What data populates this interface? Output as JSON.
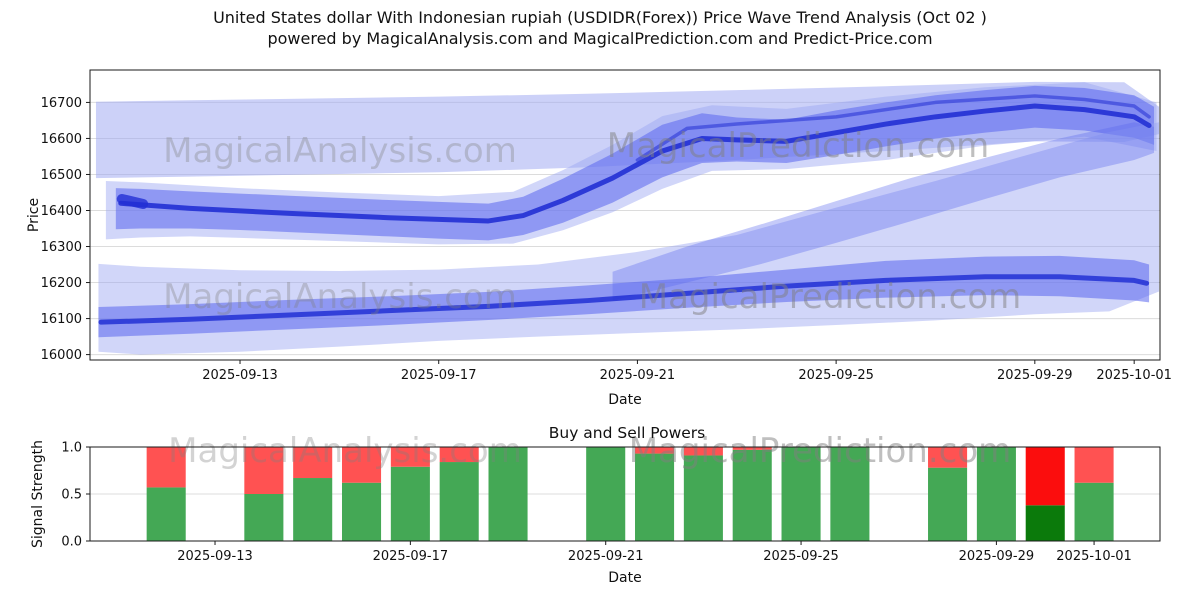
{
  "title": {
    "line1": "United States dollar With Indonesian rupiah (USDIDR(Forex)) Price Wave Trend Analysis (Oct 02 )",
    "line2": "powered by MagicalAnalysis.com and MagicalPrediction.com and Predict-Price.com"
  },
  "watermarks": {
    "left": "MagicalAnalysis.com",
    "right": "MagicalPrediction.com"
  },
  "colors": {
    "band_light": "#9aa4f2",
    "band_mid": "#5a66ee",
    "line_dark": "#2230d4",
    "buy_green": "#44a855",
    "sell_red": "#ff5252",
    "buy_green_dark": "#0b7a0b",
    "sell_red_bright": "#fb0d0d",
    "grid": "#dcdcdc",
    "axis": "#1a1a1a",
    "watermark_gray": "#808080"
  },
  "chart_data": [
    {
      "type": "area",
      "name": "price-wave-trend",
      "ylabel": "Price",
      "xlabel": "Date",
      "xlim": [
        -0.02,
        21.52
      ],
      "ylim": [
        15985,
        16790
      ],
      "yticks": [
        16000,
        16100,
        16200,
        16300,
        16400,
        16500,
        16600,
        16700
      ],
      "xtick_days": [
        3,
        7,
        11,
        15,
        19,
        21
      ],
      "xtick_labels": [
        "2025-09-13",
        "2025-09-17",
        "2025-09-21",
        "2025-09-25",
        "2025-09-29",
        "2025-10-01"
      ],
      "grid": "horizontal",
      "legend": "none",
      "bands": [
        {
          "name": "upper-outer",
          "color": "band_light",
          "opacity": 0.5,
          "x": [
            0.1,
            2,
            4,
            7,
            10,
            13,
            16,
            19,
            20.8,
            21.5
          ],
          "hi": [
            16702,
            16706,
            16710,
            16716,
            16724,
            16734,
            16745,
            16757,
            16756,
            16688
          ],
          "lo": [
            16490,
            16494,
            16499,
            16506,
            16520,
            16540,
            16565,
            16592,
            16590,
            16612
          ]
        },
        {
          "name": "mid-outer",
          "color": "band_light",
          "opacity": 0.45,
          "x": [
            0.3,
            1,
            2,
            3,
            5,
            7,
            8.5,
            9.5,
            10.5,
            11.5,
            12.5,
            14,
            16,
            18,
            20,
            21.45
          ],
          "hi": [
            16482,
            16478,
            16470,
            16462,
            16450,
            16440,
            16452,
            16512,
            16582,
            16662,
            16692,
            16682,
            16716,
            16742,
            16756,
            16700
          ],
          "lo": [
            16320,
            16325,
            16328,
            16324,
            16315,
            16306,
            16308,
            16345,
            16395,
            16460,
            16510,
            16515,
            16540,
            16580,
            16605,
            16565
          ]
        },
        {
          "name": "mid-inner",
          "color": "band_mid",
          "opacity": 0.55,
          "x": [
            0.5,
            1,
            2,
            3,
            4,
            5,
            6,
            7,
            8,
            8.7,
            9.5,
            10.5,
            11.5,
            12.3,
            13,
            14,
            15,
            16,
            17,
            18,
            19,
            20,
            21,
            21.4
          ],
          "hi": [
            16462,
            16460,
            16453,
            16447,
            16441,
            16435,
            16429,
            16424,
            16419,
            16438,
            16488,
            16558,
            16638,
            16670,
            16658,
            16652,
            16678,
            16700,
            16720,
            16734,
            16746,
            16740,
            16720,
            16688
          ],
          "lo": [
            16348,
            16350,
            16350,
            16346,
            16340,
            16334,
            16328,
            16322,
            16317,
            16332,
            16366,
            16422,
            16492,
            16532,
            16536,
            16532,
            16554,
            16578,
            16600,
            16616,
            16630,
            16622,
            16602,
            16582
          ]
        },
        {
          "name": "lower-outer",
          "color": "band_light",
          "opacity": 0.45,
          "x": [
            0.15,
            1,
            3,
            5,
            7,
            9,
            11,
            13,
            15,
            17,
            19,
            20.5,
            21.5
          ],
          "hi": [
            16252,
            16244,
            16234,
            16232,
            16236,
            16250,
            16285,
            16332,
            16408,
            16482,
            16560,
            16618,
            16645
          ],
          "lo": [
            16008,
            16000,
            16008,
            16022,
            16038,
            16050,
            16060,
            16070,
            16082,
            16095,
            16112,
            16120,
            16175
          ]
        },
        {
          "name": "lower-rise",
          "color": "band_mid",
          "opacity": 0.35,
          "x": [
            10.5,
            12,
            13.5,
            15,
            16.5,
            18,
            19.5,
            21,
            21.4
          ],
          "hi": [
            16230,
            16300,
            16362,
            16426,
            16490,
            16546,
            16600,
            16645,
            16632
          ],
          "lo": [
            16150,
            16200,
            16252,
            16310,
            16370,
            16432,
            16492,
            16540,
            16560
          ]
        },
        {
          "name": "lower-inner",
          "color": "band_mid",
          "opacity": 0.55,
          "x": [
            0.15,
            2,
            4,
            6,
            8,
            10,
            12,
            14,
            16,
            18,
            19.5,
            21,
            21.3
          ],
          "hi": [
            16132,
            16140,
            16152,
            16162,
            16174,
            16192,
            16212,
            16236,
            16260,
            16272,
            16274,
            16262,
            16250
          ],
          "lo": [
            16048,
            16058,
            16070,
            16082,
            16096,
            16112,
            16130,
            16146,
            16158,
            16165,
            16162,
            16150,
            16145
          ]
        }
      ],
      "lines": [
        {
          "name": "mid-core",
          "color": "line_dark",
          "width": 5,
          "opacity": 0.9,
          "x": [
            0.6,
            2,
            4,
            6,
            8,
            8.7,
            9.5,
            10.5,
            11.5,
            12.3,
            13,
            14,
            15,
            16,
            17,
            18,
            19,
            20,
            21,
            21.3
          ],
          "y": [
            16420,
            16406,
            16392,
            16380,
            16371,
            16386,
            16428,
            16490,
            16565,
            16600,
            16596,
            16592,
            16616,
            16640,
            16660,
            16676,
            16690,
            16680,
            16660,
            16636
          ]
        },
        {
          "name": "mid-core-upper",
          "color": "line_dark",
          "width": 3.5,
          "opacity": 0.55,
          "x": [
            11,
            12,
            13,
            15,
            17,
            19,
            20,
            21,
            21.3
          ],
          "y": [
            16540,
            16628,
            16640,
            16660,
            16700,
            16718,
            16708,
            16690,
            16660
          ]
        },
        {
          "name": "lower-core",
          "color": "line_dark",
          "width": 5,
          "opacity": 0.85,
          "x": [
            0.2,
            2,
            4,
            6,
            8,
            10,
            12,
            14,
            16,
            18,
            19.5,
            21,
            21.25
          ],
          "y": [
            16090,
            16098,
            16110,
            16122,
            16134,
            16150,
            16170,
            16190,
            16206,
            16216,
            16216,
            16206,
            16198
          ]
        },
        {
          "name": "mid-start-cap",
          "color": "line_dark",
          "width": 10,
          "opacity": 0.8,
          "x": [
            0.62,
            1.05
          ],
          "y": [
            16432,
            16418
          ]
        }
      ]
    },
    {
      "type": "bar",
      "name": "buy-sell-powers",
      "title": "Buy and Sell Powers",
      "ylabel": "Signal Strength",
      "xlabel": "Date",
      "xlim": [
        0.44,
        22.35
      ],
      "ylim": [
        0,
        1.0
      ],
      "yticks": [
        0,
        0.5,
        1
      ],
      "ytick_labels": [
        "0.0",
        "0.5",
        "1.0"
      ],
      "xtick_days": [
        3,
        7,
        11,
        15,
        19,
        21
      ],
      "xtick_labels": [
        "2025-09-13",
        "2025-09-17",
        "2025-09-21",
        "2025-09-25",
        "2025-09-29",
        "2025-10-01"
      ],
      "grid": "horizontal",
      "bar_width_days": 0.8,
      "stack_total": 1.0,
      "bars": [
        {
          "date": "2025-09-12",
          "day": 2,
          "buy": 0.57,
          "sell": 0.43
        },
        {
          "date": "2025-09-14",
          "day": 4,
          "buy": 0.5,
          "sell": 0.5
        },
        {
          "date": "2025-09-15",
          "day": 5,
          "buy": 0.67,
          "sell": 0.33
        },
        {
          "date": "2025-09-16",
          "day": 6,
          "buy": 0.62,
          "sell": 0.38
        },
        {
          "date": "2025-09-17",
          "day": 7,
          "buy": 0.79,
          "sell": 0.21
        },
        {
          "date": "2025-09-18",
          "day": 8,
          "buy": 0.84,
          "sell": 0.16
        },
        {
          "date": "2025-09-19",
          "day": 9,
          "buy": 1.0,
          "sell": 0.0
        },
        {
          "date": "2025-09-21",
          "day": 11,
          "buy": 1.0,
          "sell": 0.0
        },
        {
          "date": "2025-09-22",
          "day": 12,
          "buy": 0.93,
          "sell": 0.07
        },
        {
          "date": "2025-09-23",
          "day": 13,
          "buy": 0.91,
          "sell": 0.09
        },
        {
          "date": "2025-09-24",
          "day": 14,
          "buy": 0.97,
          "sell": 0.03
        },
        {
          "date": "2025-09-25",
          "day": 15,
          "buy": 1.0,
          "sell": 0.0
        },
        {
          "date": "2025-09-26",
          "day": 16,
          "buy": 1.0,
          "sell": 0.0
        },
        {
          "date": "2025-09-28",
          "day": 18,
          "buy": 0.78,
          "sell": 0.22
        },
        {
          "date": "2025-09-29",
          "day": 19,
          "buy": 1.0,
          "sell": 0.0
        },
        {
          "date": "2025-09-30",
          "day": 20,
          "buy": 0.38,
          "sell": 0.62,
          "buy_color": "buy_green_dark",
          "sell_color": "sell_red_bright"
        },
        {
          "date": "2025-10-01",
          "day": 21,
          "buy": 0.62,
          "sell": 0.38
        }
      ]
    }
  ]
}
